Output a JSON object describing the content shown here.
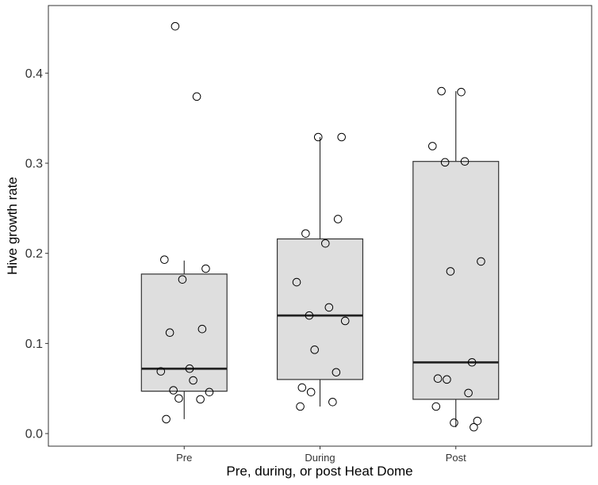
{
  "chart_data": {
    "type": "box",
    "xlabel": "Pre, during, or post Heat Dome",
    "ylabel": "Hive growth rate",
    "ylim": [
      -0.014,
      0.475
    ],
    "yticks": [
      0.0,
      0.1,
      0.2,
      0.3,
      0.4
    ],
    "ytick_labels": [
      "0.0",
      "0.1",
      "0.2",
      "0.3",
      "0.4"
    ],
    "grid": false,
    "colors": {
      "box_fill": "#dedede",
      "box_stroke": "#333333",
      "point_stroke": "#000000"
    },
    "categories": [
      "Pre",
      "During",
      "Post"
    ],
    "boxes": [
      {
        "category": "Pre",
        "q1": 0.047,
        "median": 0.072,
        "q3": 0.177,
        "whisker_low": 0.016,
        "whisker_high": 0.192
      },
      {
        "category": "During",
        "q1": 0.06,
        "median": 0.131,
        "q3": 0.216,
        "whisker_low": 0.03,
        "whisker_high": 0.329
      },
      {
        "category": "Post",
        "q1": 0.038,
        "median": 0.079,
        "q3": 0.302,
        "whisker_low": 0.007,
        "whisker_high": 0.38
      }
    ],
    "points": [
      {
        "category": "Pre",
        "values": [
          0.452,
          0.374,
          0.193,
          0.183,
          0.171,
          0.116,
          0.112,
          0.072,
          0.069,
          0.059,
          0.048,
          0.046,
          0.039,
          0.038,
          0.016
        ]
      },
      {
        "category": "During",
        "values": [
          0.329,
          0.329,
          0.238,
          0.222,
          0.211,
          0.168,
          0.14,
          0.131,
          0.125,
          0.093,
          0.068,
          0.051,
          0.046,
          0.035,
          0.03
        ]
      },
      {
        "category": "Post",
        "values": [
          0.38,
          0.379,
          0.319,
          0.302,
          0.301,
          0.191,
          0.18,
          0.079,
          0.061,
          0.06,
          0.045,
          0.03,
          0.014,
          0.012,
          0.007
        ]
      }
    ]
  }
}
